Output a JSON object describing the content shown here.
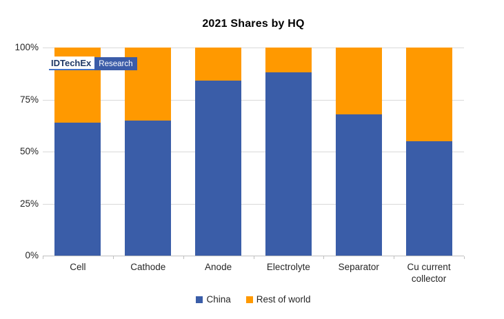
{
  "title": "2021 Shares by HQ",
  "logo": {
    "brand": "IDTechEx",
    "suffix": "Research"
  },
  "colors": {
    "china": "#3a5da8",
    "rest_of_world": "#ff9900",
    "gridline": "#d9d9d9",
    "axis": "#bfbfbf",
    "text": "#262626",
    "logo_navy": "#1f3864",
    "logo_blue": "#3b5ca8"
  },
  "chart_data": {
    "type": "bar",
    "stacked": true,
    "title": "2021 Shares by HQ",
    "categories": [
      "Cell",
      "Cathode",
      "Anode",
      "Electrolyte",
      "Separator",
      "Cu current collector"
    ],
    "series": [
      {
        "name": "China",
        "color": "#3a5da8",
        "values": [
          64,
          65,
          84,
          88,
          68,
          55
        ]
      },
      {
        "name": "Rest of world",
        "color": "#ff9900",
        "values": [
          36,
          35,
          16,
          12,
          32,
          45
        ]
      }
    ],
    "xlabel": "",
    "ylabel": "",
    "ylim": [
      0,
      100
    ],
    "yticks": [
      {
        "label": "0%",
        "value": 0
      },
      {
        "label": "25%",
        "value": 25
      },
      {
        "label": "50%",
        "value": 50
      },
      {
        "label": "75%",
        "value": 75
      },
      {
        "label": "100%",
        "value": 100
      }
    ],
    "grid": true,
    "legend_position": "bottom"
  }
}
